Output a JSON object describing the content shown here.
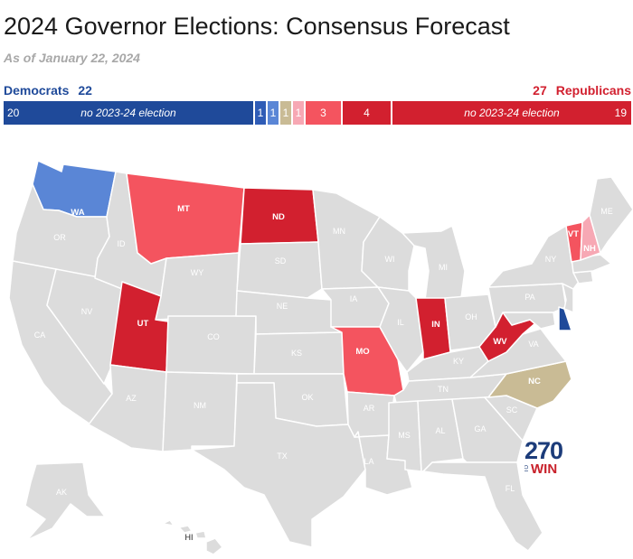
{
  "title": "2024 Governor Elections: Consensus Forecast",
  "subtitle": "As of January 22, 2024",
  "democrats": {
    "label": "Democrats",
    "count": "22"
  },
  "republicans": {
    "label": "Republicans",
    "count": "27"
  },
  "colors": {
    "safe_dem": "#1f4a9a",
    "likely_dem": "#2f5cb6",
    "lean_dem": "#5a86d6",
    "toss_up": "#c9bb95",
    "lean_rep": "#f7a8b4",
    "likely_rep": "#f4545f",
    "safe_rep": "#d2202f",
    "no_election": "#dcdcdc"
  },
  "bar": [
    {
      "category": "dem_no_election",
      "value": "20",
      "note": "no 2023-24 election",
      "color": "#1f4a9a"
    },
    {
      "category": "safe_dem",
      "value": "1",
      "color": "#2f5cb6"
    },
    {
      "category": "lean_dem",
      "value": "1",
      "color": "#5a86d6"
    },
    {
      "category": "toss_up",
      "value": "1",
      "color": "#c9bb95"
    },
    {
      "category": "lean_rep",
      "value": "1",
      "color": "#f7a8b4"
    },
    {
      "category": "likely_rep",
      "value": "3",
      "color": "#f4545f"
    },
    {
      "category": "safe_rep",
      "value": "4",
      "color": "#d2202f"
    },
    {
      "category": "rep_no_election",
      "value": "19",
      "note": "no 2023-24 election",
      "color": "#d2202f"
    }
  ],
  "states": {
    "WA": "lean_dem",
    "MT": "likely_rep",
    "ND": "safe_rep",
    "UT": "safe_rep",
    "MO": "likely_rep",
    "IN": "safe_rep",
    "WV": "safe_rep",
    "NC": "toss_up",
    "VT": "likely_rep",
    "NH": "lean_rep",
    "DE": "safe_dem"
  },
  "state_labels": [
    "WA",
    "OR",
    "CA",
    "NV",
    "ID",
    "MT",
    "WY",
    "UT",
    "AZ",
    "CO",
    "NM",
    "ND",
    "SD",
    "NE",
    "KS",
    "OK",
    "TX",
    "MN",
    "IA",
    "MO",
    "AR",
    "LA",
    "WI",
    "IL",
    "MI",
    "IN",
    "OH",
    "KY",
    "TN",
    "MS",
    "AL",
    "GA",
    "FL",
    "SC",
    "NC",
    "VA",
    "WV",
    "PA",
    "NY",
    "VT",
    "NH",
    "ME",
    "AK",
    "HI"
  ],
  "logo": {
    "number": "270",
    "to": "TO",
    "win": "WIN"
  }
}
